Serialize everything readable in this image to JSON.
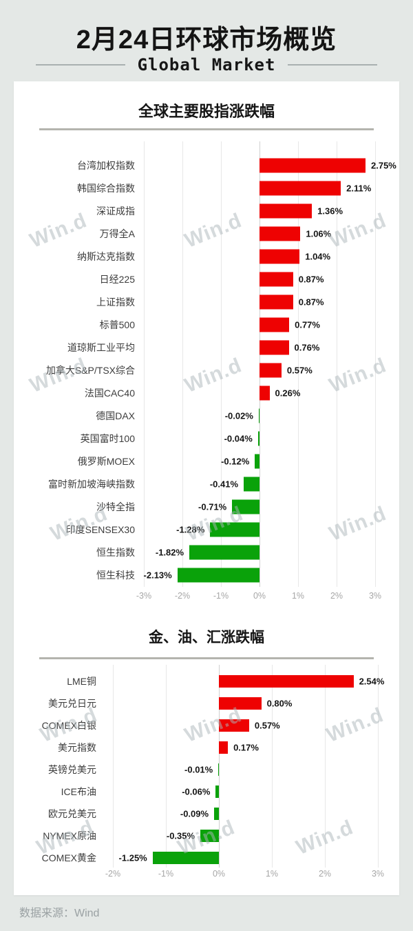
{
  "page": {
    "title": "2月24日环球市场概览",
    "subtitle": "Global Market",
    "source": "数据来源：Wind",
    "watermark": "Win.d"
  },
  "colors": {
    "up": "#ee0202",
    "down": "#0aa20a",
    "background": "#e4e8e6",
    "card": "#ffffff"
  },
  "chart_data": [
    {
      "type": "bar",
      "orientation": "horizontal",
      "title": "全球主要股指涨跌幅",
      "unit": "%",
      "xlim": [
        -3,
        3
      ],
      "grid": true,
      "x_tick_values": [
        -3,
        -2,
        -1,
        0,
        1,
        2,
        3
      ],
      "x_tick_labels": [
        "-3%",
        "-2%",
        "-1%",
        "0%",
        "1%",
        "2%",
        "3%"
      ],
      "categories": [
        "台湾加权指数",
        "韩国综合指数",
        "深证成指",
        "万得全A",
        "纳斯达克指数",
        "日经225",
        "上证指数",
        "标普500",
        "道琼斯工业平均",
        "加拿大S&P/TSX综合",
        "法国CAC40",
        "德国DAX",
        "英国富时100",
        "俄罗斯MOEX",
        "富时新加坡海峡指数",
        "沙特全指",
        "印度SENSEX30",
        "恒生指数",
        "恒生科技"
      ],
      "values": [
        2.75,
        2.11,
        1.36,
        1.06,
        1.04,
        0.87,
        0.87,
        0.77,
        0.76,
        0.57,
        0.26,
        -0.02,
        -0.04,
        -0.12,
        -0.41,
        -0.71,
        -1.28,
        -1.82,
        -2.13
      ],
      "value_labels": [
        "2.75%",
        "2.11%",
        "1.36%",
        "1.06%",
        "1.04%",
        "0.87%",
        "0.87%",
        "0.77%",
        "0.76%",
        "0.57%",
        "0.26%",
        "-0.02%",
        "-0.04%",
        "-0.12%",
        "-0.41%",
        "-0.71%",
        "-1.28%",
        "-1.82%",
        "-2.13%"
      ]
    },
    {
      "type": "bar",
      "orientation": "horizontal",
      "title": "金、油、汇涨跌幅",
      "unit": "%",
      "xlim": [
        -2,
        3
      ],
      "grid": true,
      "x_tick_values": [
        -2,
        -1,
        0,
        1,
        2,
        3
      ],
      "x_tick_labels": [
        "-2%",
        "-1%",
        "0%",
        "1%",
        "2%",
        "3%"
      ],
      "categories": [
        "LME铜",
        "美元兑日元",
        "COMEX白银",
        "美元指数",
        "英镑兑美元",
        "ICE布油",
        "欧元兑美元",
        "NYMEX原油",
        "COMEX黄金"
      ],
      "values": [
        2.54,
        0.8,
        0.57,
        0.17,
        -0.01,
        -0.06,
        -0.09,
        -0.35,
        -1.25
      ],
      "value_labels": [
        "2.54%",
        "0.80%",
        "0.57%",
        "0.17%",
        "-0.01%",
        "-0.06%",
        "-0.09%",
        "-0.35%",
        "-1.25%"
      ]
    }
  ]
}
